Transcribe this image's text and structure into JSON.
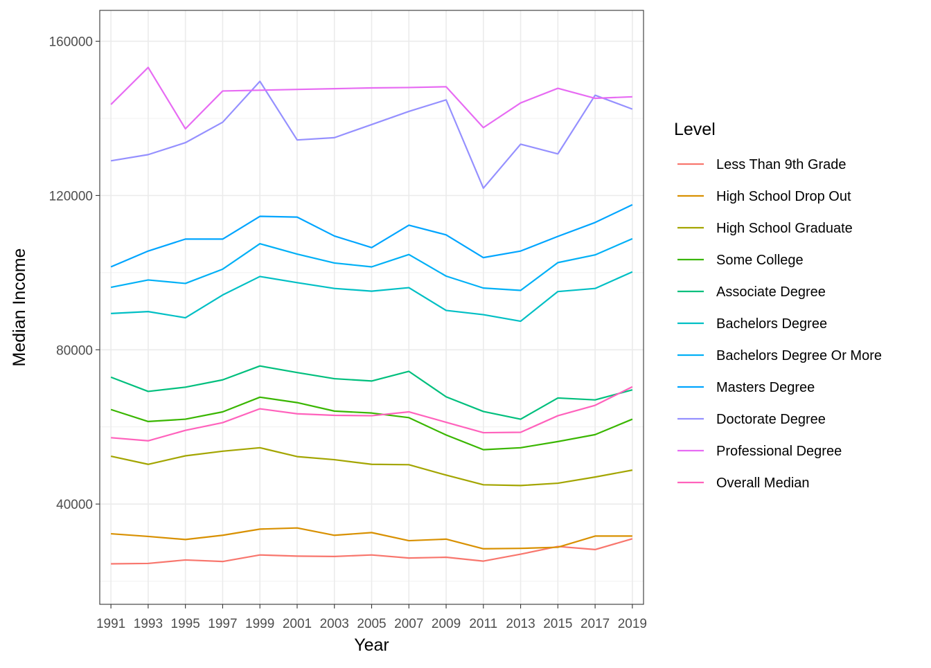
{
  "chart_data": {
    "type": "line",
    "title": "",
    "xlabel": "Year",
    "ylabel": "Median Income",
    "x": [
      1991,
      1993,
      1995,
      1997,
      1999,
      2001,
      2003,
      2005,
      2007,
      2009,
      2011,
      2013,
      2015,
      2017,
      2019
    ],
    "x_tick_labels": [
      "1991",
      "1993",
      "1995",
      "1997",
      "1999",
      "2001",
      "2003",
      "2005",
      "2007",
      "2009",
      "2011",
      "2013",
      "2015",
      "2017",
      "2019"
    ],
    "y_ticks": [
      40000,
      80000,
      120000,
      160000
    ],
    "y_tick_labels": [
      "40000",
      "80000",
      "120000",
      "160000"
    ],
    "ylim": [
      14000,
      168000
    ],
    "grid": true,
    "legend": {
      "title": "Level",
      "placement": "right"
    },
    "series": [
      {
        "name": "Less Than 9th Grade",
        "color": "#F8766D",
        "values": [
          24500,
          24600,
          25500,
          25100,
          26800,
          26500,
          26400,
          26800,
          26000,
          26200,
          25200,
          27000,
          29000,
          28200,
          31000
        ]
      },
      {
        "name": "High School Drop Out",
        "color": "#D89000",
        "values": [
          32300,
          31600,
          30800,
          31900,
          33500,
          33800,
          31900,
          32600,
          30500,
          30900,
          28400,
          28500,
          28800,
          31700,
          31700
        ]
      },
      {
        "name": "High School Graduate",
        "color": "#A3A500",
        "values": [
          52400,
          50300,
          52500,
          53700,
          54600,
          52300,
          51500,
          50300,
          50200,
          47500,
          45000,
          44800,
          45400,
          47000,
          48800
        ]
      },
      {
        "name": "Some College",
        "color": "#39B600",
        "values": [
          64500,
          61400,
          62000,
          63900,
          67700,
          66300,
          64100,
          63600,
          62400,
          57900,
          54100,
          54600,
          56200,
          58000,
          62000
        ]
      },
      {
        "name": "Associate Degree",
        "color": "#00BF7D",
        "values": [
          72900,
          69200,
          70300,
          72200,
          75800,
          74100,
          72500,
          71900,
          74400,
          67800,
          64000,
          62000,
          67500,
          67000,
          69600
        ]
      },
      {
        "name": "Bachelors Degree",
        "color": "#00BFC4",
        "values": [
          89400,
          89900,
          88300,
          94200,
          99000,
          97400,
          95900,
          95200,
          96100,
          90200,
          89100,
          87400,
          95100,
          95900,
          100200
        ]
      },
      {
        "name": "Bachelors Degree Or More",
        "color": "#00B0F6",
        "values": [
          96200,
          98100,
          97200,
          100900,
          107500,
          104800,
          102500,
          101500,
          104700,
          99100,
          96000,
          95400,
          102600,
          104600,
          108800
        ]
      },
      {
        "name": "Masters Degree",
        "color": "#00A5FF",
        "values": [
          101500,
          105600,
          108700,
          108700,
          114600,
          114400,
          109500,
          106500,
          112300,
          109800,
          103900,
          105600,
          109400,
          113000,
          117600
        ]
      },
      {
        "name": "Doctorate Degree",
        "color": "#9590FF",
        "values": [
          129000,
          130600,
          133700,
          139000,
          149600,
          134400,
          135000,
          138400,
          141800,
          144800,
          121900,
          133300,
          130800,
          146000,
          142400
        ]
      },
      {
        "name": "Professional Degree",
        "color": "#E76BF3",
        "values": [
          143600,
          153200,
          137300,
          147100,
          147300,
          147500,
          147700,
          147900,
          148000,
          148200,
          137600,
          144000,
          147800,
          145200,
          145600
        ]
      },
      {
        "name": "Overall Median",
        "color": "#FF62BC",
        "values": [
          57200,
          56400,
          59100,
          61100,
          64700,
          63400,
          63000,
          62900,
          63900,
          61200,
          58500,
          58600,
          62900,
          65600,
          70400
        ]
      }
    ]
  }
}
